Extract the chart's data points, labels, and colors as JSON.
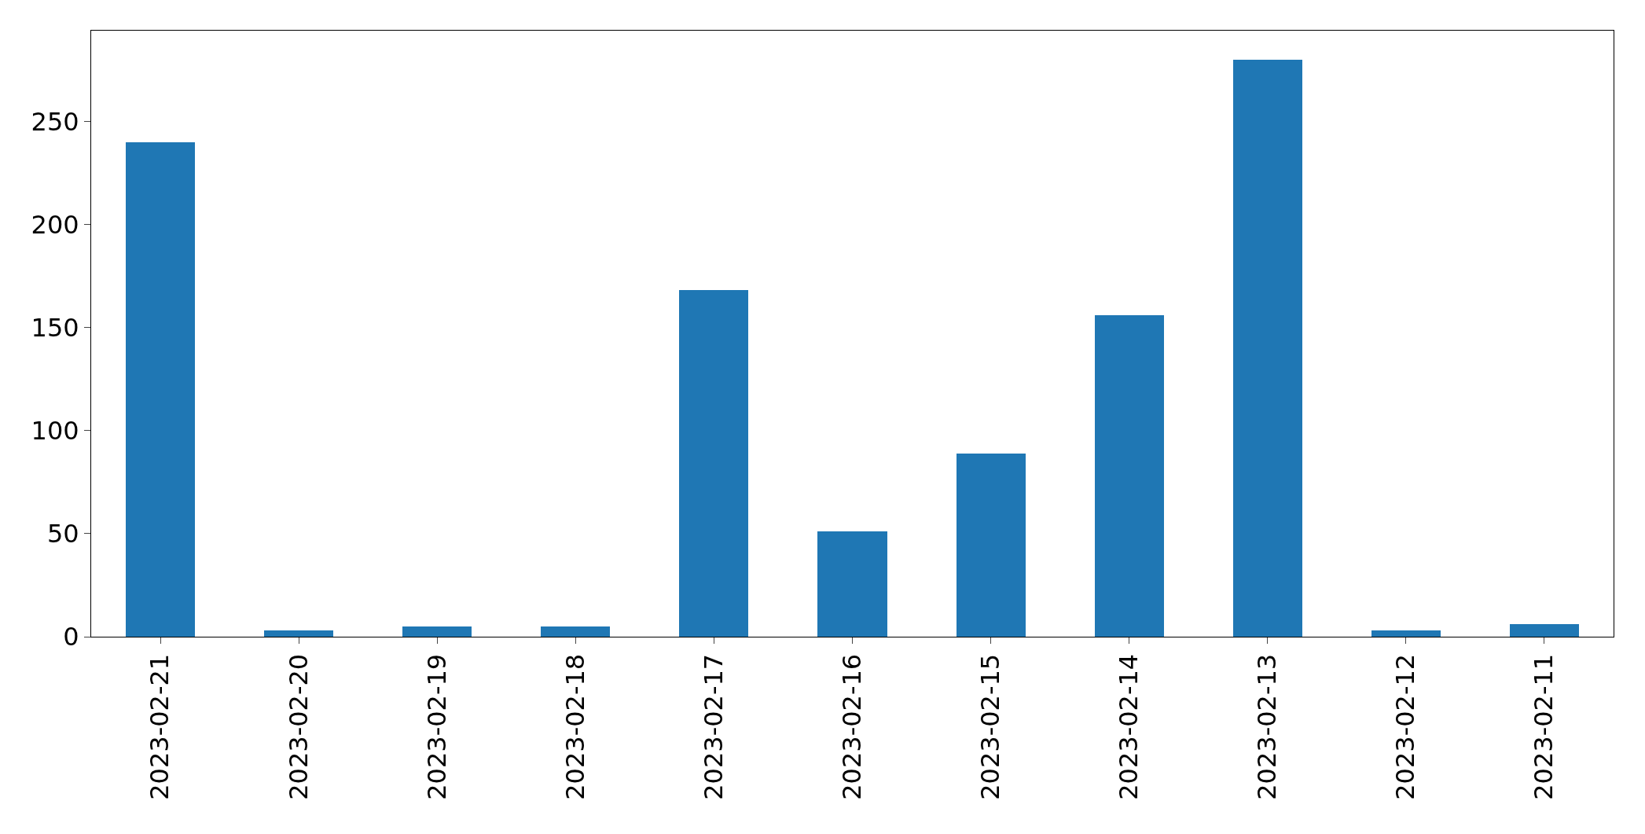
{
  "chart_data": {
    "type": "bar",
    "categories": [
      "2023-02-21",
      "2023-02-20",
      "2023-02-19",
      "2023-02-18",
      "2023-02-17",
      "2023-02-16",
      "2023-02-15",
      "2023-02-14",
      "2023-02-13",
      "2023-02-12",
      "2023-02-11"
    ],
    "values": [
      240,
      3,
      5,
      5,
      168,
      51,
      89,
      156,
      280,
      3,
      6
    ],
    "color": "#1f77b4",
    "ylim": [
      0,
      294
    ],
    "yticks": [
      0,
      50,
      100,
      150,
      200,
      250
    ],
    "grid": false,
    "legend": false
  }
}
